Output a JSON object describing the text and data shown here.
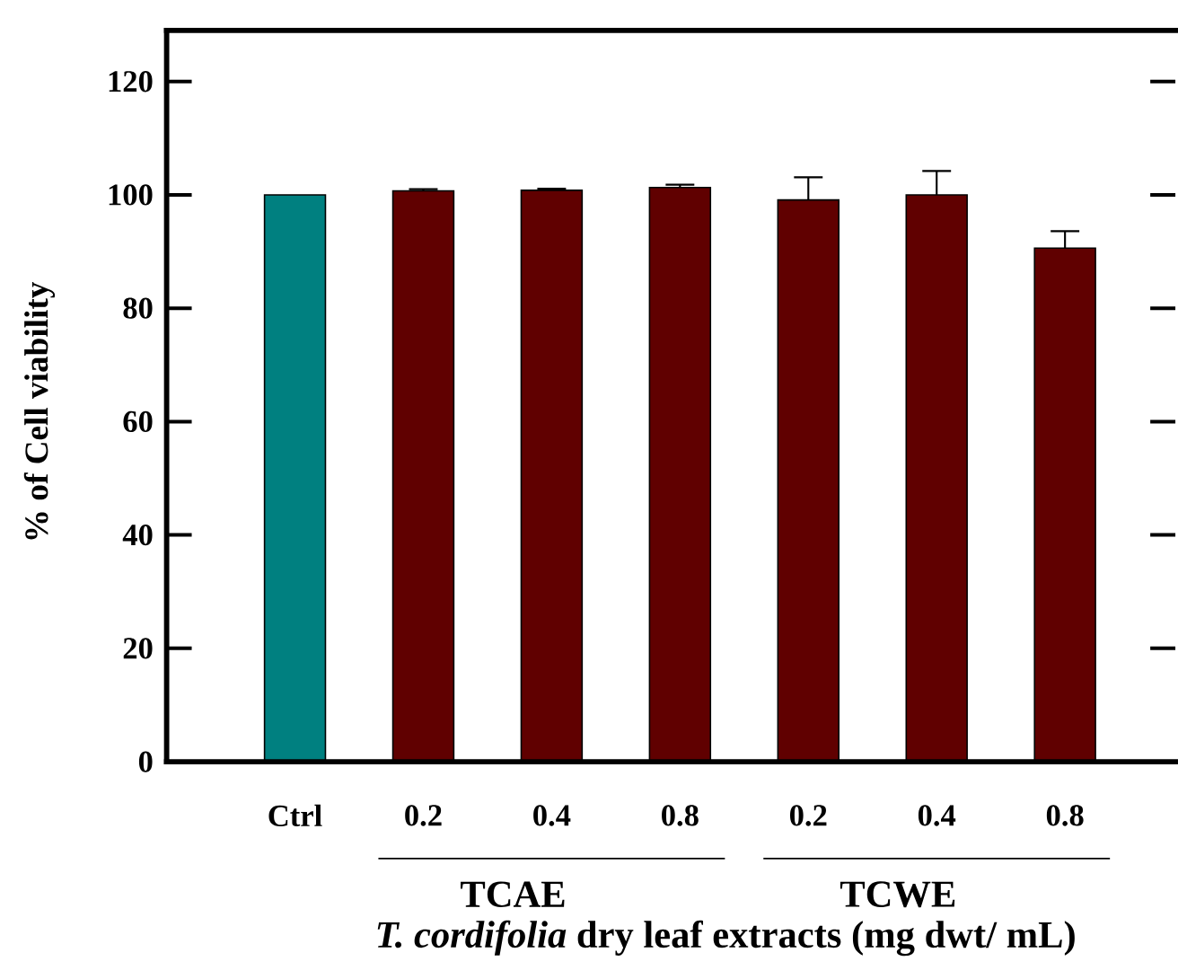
{
  "chart_data": {
    "type": "bar",
    "xlabel": "*T. cordifolia* dry leaf extracts (mg dwt/ mL)",
    "ylabel": "% of Cell viability",
    "categories": [
      "Ctrl",
      "0.2",
      "0.4",
      "0.8",
      "0.2",
      "0.4",
      "0.8"
    ],
    "values": [
      100,
      100.7,
      100.8,
      101.3,
      99.1,
      100,
      90.6
    ],
    "errors": [
      null,
      0.3,
      0.3,
      0.5,
      4,
      4.2,
      3
    ],
    "colors": [
      "#008080",
      "#600000",
      "#600000",
      "#600000",
      "#600000",
      "#600000",
      "#600000"
    ],
    "ylim": [
      0,
      129
    ],
    "yticks": [
      0,
      20,
      40,
      60,
      80,
      100,
      120
    ],
    "grid": false,
    "annotations": [
      "TCAE",
      "TCWE"
    ]
  }
}
